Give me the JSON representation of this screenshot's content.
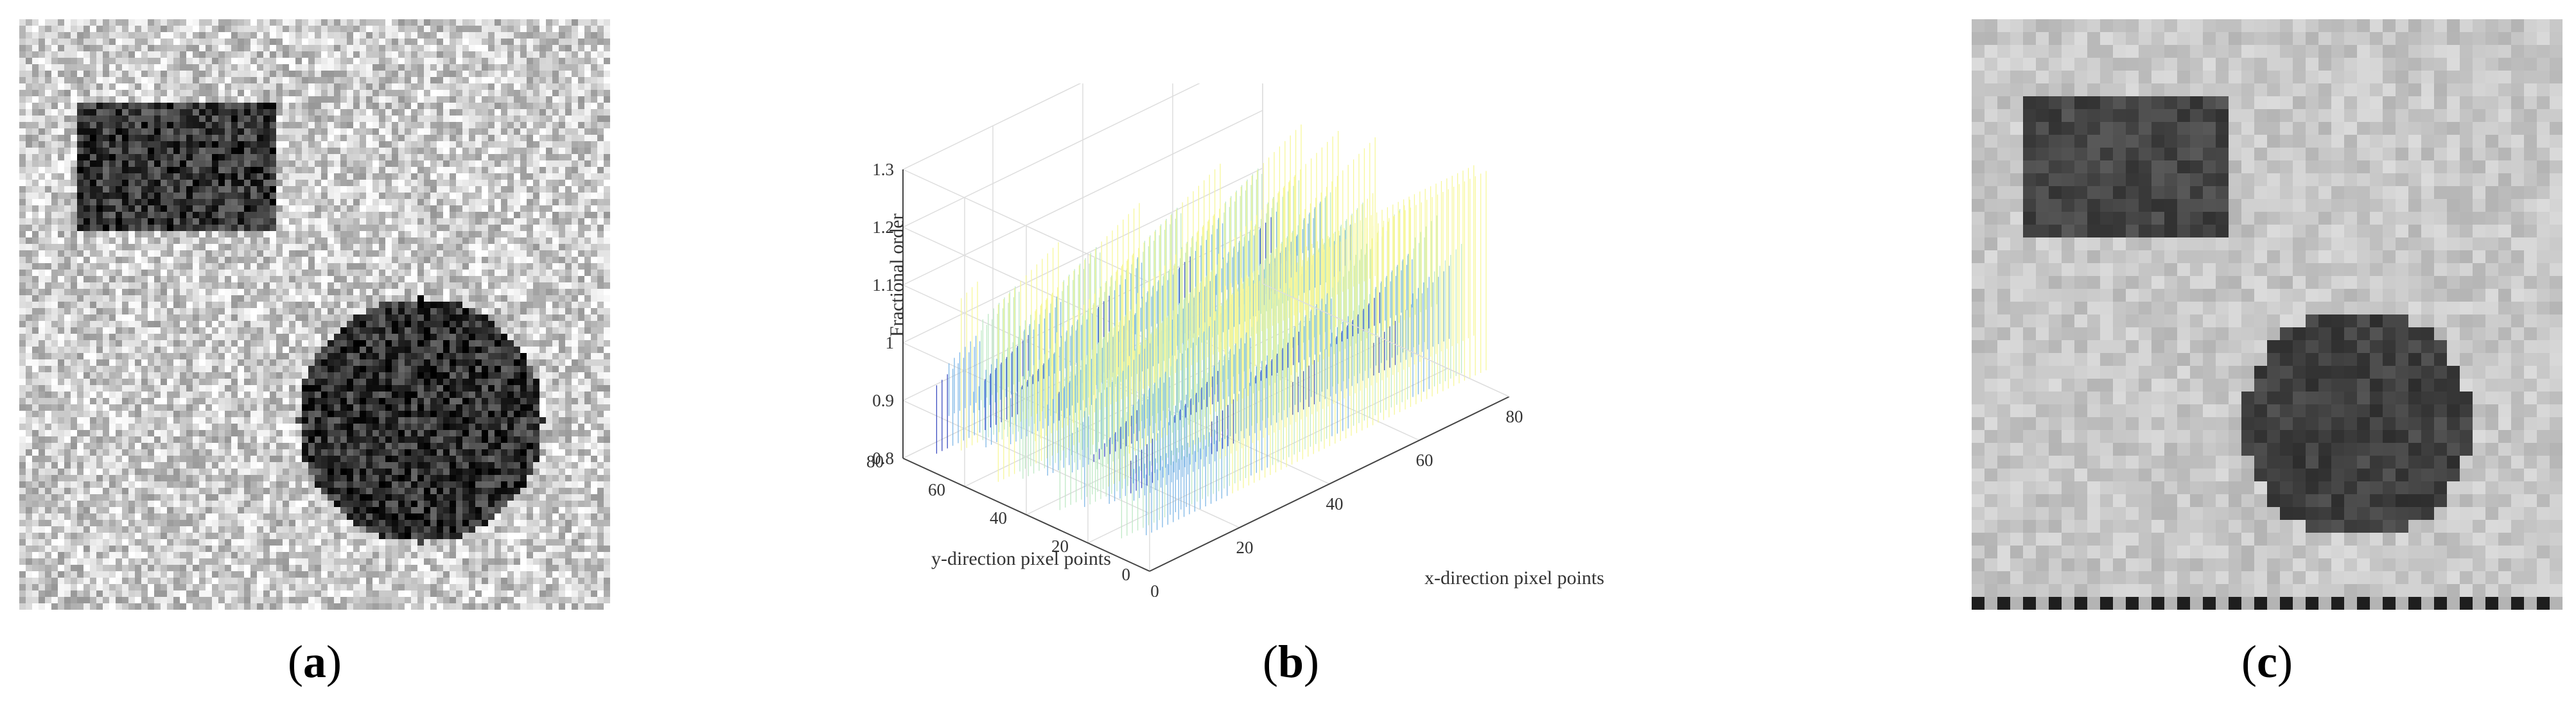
{
  "figure": {
    "panels": [
      {
        "id": "a",
        "caption_prefix": "(",
        "caption_letter": "a",
        "caption_suffix": ")"
      },
      {
        "id": "b",
        "caption_prefix": "(",
        "caption_letter": "b",
        "caption_suffix": ")"
      },
      {
        "id": "c",
        "caption_prefix": "(",
        "caption_letter": "c",
        "caption_suffix": ")"
      }
    ]
  },
  "chart_data": {
    "type": "surface3d",
    "zlabel": "Fractional order",
    "xlabel": "x-direction pixel points",
    "ylabel": "y-direction pixel points",
    "zlim": [
      0.8,
      1.3
    ],
    "xlim": [
      0,
      80
    ],
    "ylim": [
      0,
      80
    ],
    "z_ticks": [
      "0.8",
      "0.9",
      "1",
      "1.1",
      "1.2",
      "1.3"
    ],
    "x_ticks": [
      "0",
      "20",
      "40",
      "60",
      "80"
    ],
    "y_ticks": [
      "0",
      "20",
      "40",
      "60",
      "80"
    ],
    "grid": true,
    "colormap": [
      "#3b4cc0",
      "#7fb7e6",
      "#bfe9c6",
      "#f7f79a"
    ]
  }
}
